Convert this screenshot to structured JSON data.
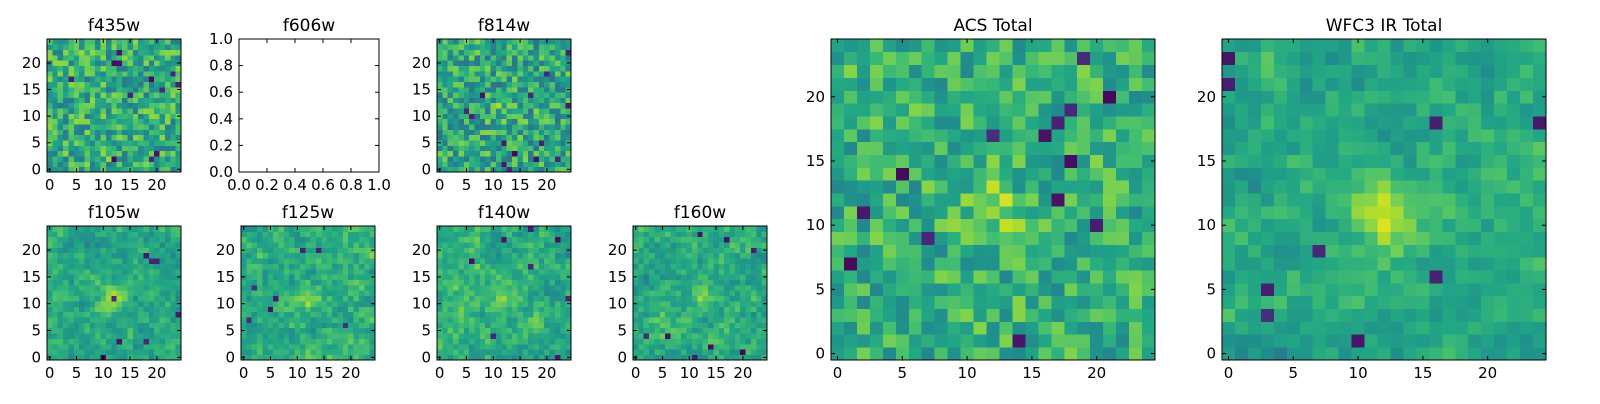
{
  "figure": {
    "background": "#ffffff"
  },
  "colormap": {
    "name": "viridis",
    "low": "#440154",
    "mid": "#21908d",
    "high": "#fde725"
  },
  "chart_data": [
    {
      "type": "heatmap",
      "title": "f435w",
      "grid_size": 25,
      "xlim": [
        -0.5,
        24.5
      ],
      "ylim": [
        -0.5,
        24.5
      ],
      "xticks": [
        "0",
        "5",
        "10",
        "15",
        "20"
      ],
      "yticks": [
        "0",
        "5",
        "10",
        "15",
        "20"
      ],
      "seed": 11,
      "level": 0.62,
      "spread": 0.22,
      "smooth": 0,
      "center_boost": 0.0,
      "dark_spots": 12
    },
    {
      "type": "empty",
      "title": "f606w",
      "xlim": [
        0,
        1
      ],
      "ylim": [
        0,
        1
      ],
      "xticks": [
        "0.0",
        "0.2",
        "0.4",
        "0.6",
        "0.8",
        "1.0"
      ],
      "yticks": [
        "0.0",
        "0.2",
        "0.4",
        "0.6",
        "0.8",
        "1.0"
      ]
    },
    {
      "type": "heatmap",
      "title": "f814w",
      "grid_size": 25,
      "xlim": [
        -0.5,
        24.5
      ],
      "ylim": [
        -0.5,
        24.5
      ],
      "xticks": [
        "0",
        "5",
        "10",
        "15",
        "20"
      ],
      "yticks": [
        "0",
        "5",
        "10",
        "15",
        "20"
      ],
      "seed": 23,
      "level": 0.6,
      "spread": 0.22,
      "smooth": 0,
      "center_boost": 0.12,
      "dark_spots": 14
    },
    {
      "type": "heatmap",
      "title": "f105w",
      "grid_size": 25,
      "xlim": [
        -0.5,
        24.5
      ],
      "ylim": [
        -0.5,
        24.5
      ],
      "xticks": [
        "0",
        "5",
        "10",
        "15",
        "20"
      ],
      "yticks": [
        "0",
        "5",
        "10",
        "15",
        "20"
      ],
      "seed": 37,
      "level": 0.6,
      "spread": 0.18,
      "smooth": 1,
      "center_boost": 0.25,
      "dark_spots": 8
    },
    {
      "type": "heatmap",
      "title": "f125w",
      "grid_size": 25,
      "xlim": [
        -0.5,
        24.5
      ],
      "ylim": [
        -0.5,
        24.5
      ],
      "xticks": [
        "0",
        "5",
        "10",
        "15",
        "20"
      ],
      "yticks": [
        "0",
        "5",
        "10",
        "15",
        "20"
      ],
      "seed": 41,
      "level": 0.62,
      "spread": 0.2,
      "smooth": 1,
      "center_boost": 0.2,
      "dark_spots": 7
    },
    {
      "type": "heatmap",
      "title": "f140w",
      "grid_size": 25,
      "xlim": [
        -0.5,
        24.5
      ],
      "ylim": [
        -0.5,
        24.5
      ],
      "xticks": [
        "0",
        "5",
        "10",
        "15",
        "20"
      ],
      "yticks": [
        "0",
        "5",
        "10",
        "15",
        "20"
      ],
      "seed": 53,
      "level": 0.63,
      "spread": 0.2,
      "smooth": 1,
      "center_boost": 0.15,
      "dark_spots": 8
    },
    {
      "type": "heatmap",
      "title": "f160w",
      "grid_size": 25,
      "xlim": [
        -0.5,
        24.5
      ],
      "ylim": [
        -0.5,
        24.5
      ],
      "xticks": [
        "0",
        "5",
        "10",
        "15",
        "20"
      ],
      "yticks": [
        "0",
        "5",
        "10",
        "15",
        "20"
      ],
      "seed": 67,
      "level": 0.62,
      "spread": 0.2,
      "smooth": 1,
      "center_boost": 0.15,
      "dark_spots": 8
    },
    {
      "type": "heatmap",
      "title": "ACS Total",
      "grid_size": 25,
      "xlim": [
        -0.5,
        24.5
      ],
      "ylim": [
        -0.5,
        24.5
      ],
      "xticks": [
        "0",
        "5",
        "10",
        "15",
        "20"
      ],
      "yticks": [
        "0",
        "5",
        "10",
        "15",
        "20"
      ],
      "seed": 79,
      "level": 0.64,
      "spread": 0.18,
      "smooth": 0,
      "center_boost": 0.18,
      "dark_spots": 14
    },
    {
      "type": "heatmap",
      "title": "WFC3 IR Total",
      "grid_size": 25,
      "xlim": [
        -0.5,
        24.5
      ],
      "ylim": [
        -0.5,
        24.5
      ],
      "xticks": [
        "0",
        "5",
        "10",
        "15",
        "20"
      ],
      "yticks": [
        "0",
        "5",
        "10",
        "15",
        "20"
      ],
      "seed": 97,
      "level": 0.6,
      "spread": 0.16,
      "smooth": 1,
      "center_boost": 0.35,
      "dark_spots": 9
    }
  ]
}
